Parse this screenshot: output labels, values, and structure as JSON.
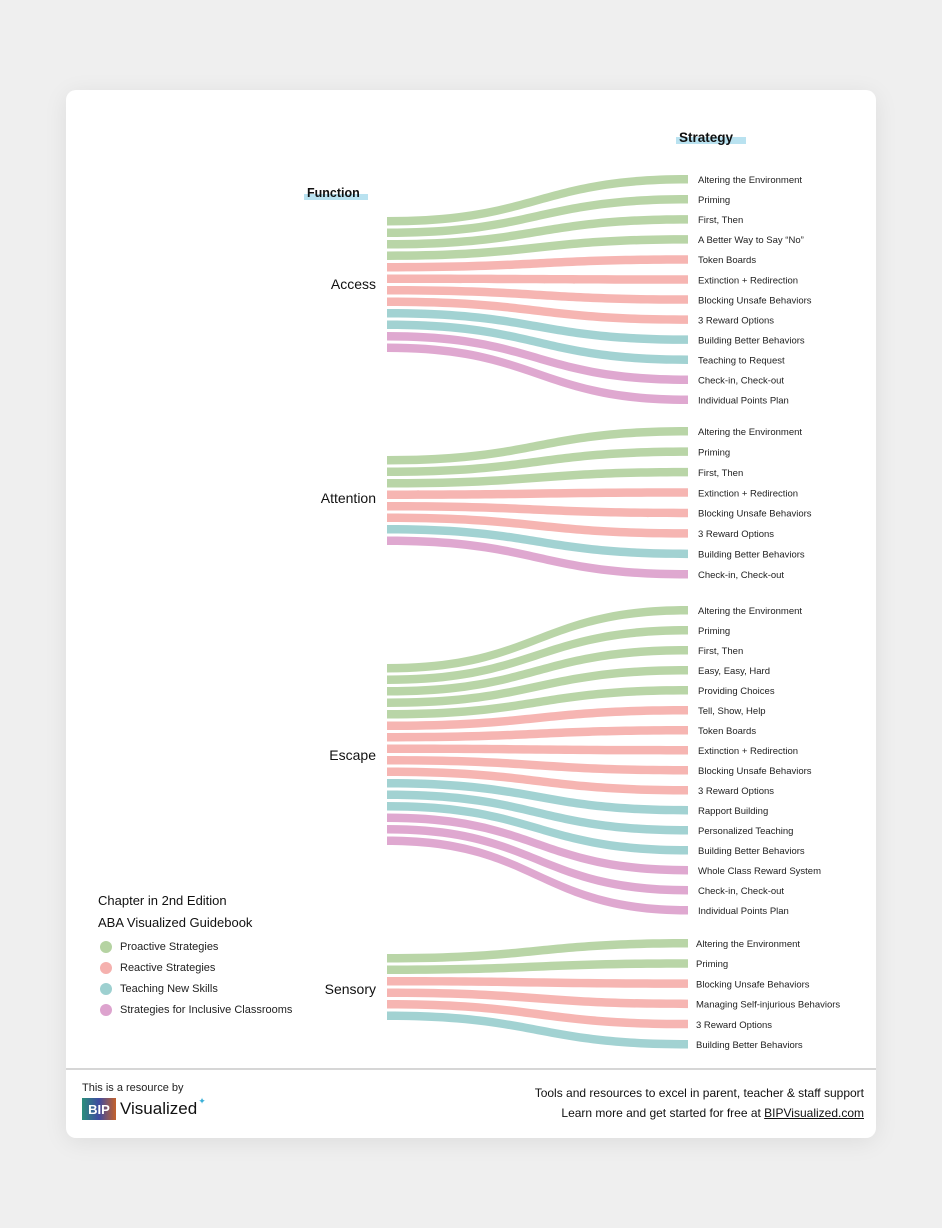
{
  "colors": {
    "proactive": "#b5d3a2",
    "reactive": "#f5b1ae",
    "teaching": "#9dd0d0",
    "inclusive": "#dda3ce",
    "header_highlight": "#b9e2f0"
  },
  "chart_data": {
    "type": "sankey",
    "source_header": "Function",
    "target_header": "Strategy",
    "groups": [
      {
        "function": "Access",
        "strategies": [
          {
            "label": "Altering the Environment",
            "category": "proactive"
          },
          {
            "label": "Priming",
            "category": "proactive"
          },
          {
            "label": "First, Then",
            "category": "proactive"
          },
          {
            "label": "A Better Way to Say “No”",
            "category": "proactive"
          },
          {
            "label": "Token Boards",
            "category": "reactive"
          },
          {
            "label": "Extinction + Redirection",
            "category": "reactive"
          },
          {
            "label": "Blocking Unsafe Behaviors",
            "category": "reactive"
          },
          {
            "label": "3 Reward Options",
            "category": "reactive"
          },
          {
            "label": "Building Better Behaviors",
            "category": "teaching"
          },
          {
            "label": "Teaching to Request",
            "category": "teaching"
          },
          {
            "label": "Check-in, Check-out",
            "category": "inclusive"
          },
          {
            "label": "Individual Points Plan",
            "category": "inclusive"
          }
        ]
      },
      {
        "function": "Attention",
        "strategies": [
          {
            "label": "Altering the Environment",
            "category": "proactive"
          },
          {
            "label": "Priming",
            "category": "proactive"
          },
          {
            "label": "First, Then",
            "category": "proactive"
          },
          {
            "label": "Extinction + Redirection",
            "category": "reactive"
          },
          {
            "label": "Blocking Unsafe Behaviors",
            "category": "reactive"
          },
          {
            "label": "3 Reward Options",
            "category": "reactive"
          },
          {
            "label": "Building Better Behaviors",
            "category": "teaching"
          },
          {
            "label": "Check-in, Check-out",
            "category": "inclusive"
          }
        ]
      },
      {
        "function": "Escape",
        "strategies": [
          {
            "label": "Altering the Environment",
            "category": "proactive"
          },
          {
            "label": "Priming",
            "category": "proactive"
          },
          {
            "label": "First, Then",
            "category": "proactive"
          },
          {
            "label": "Easy, Easy, Hard",
            "category": "proactive"
          },
          {
            "label": "Providing Choices",
            "category": "proactive"
          },
          {
            "label": "Tell, Show, Help",
            "category": "reactive"
          },
          {
            "label": "Token Boards",
            "category": "reactive"
          },
          {
            "label": "Extinction + Redirection",
            "category": "reactive"
          },
          {
            "label": "Blocking Unsafe Behaviors",
            "category": "reactive"
          },
          {
            "label": "3 Reward Options",
            "category": "reactive"
          },
          {
            "label": "Rapport Building",
            "category": "teaching"
          },
          {
            "label": "Personalized Teaching",
            "category": "teaching"
          },
          {
            "label": "Building Better Behaviors",
            "category": "teaching"
          },
          {
            "label": "Whole Class Reward System",
            "category": "inclusive"
          },
          {
            "label": "Check-in, Check-out",
            "category": "inclusive"
          },
          {
            "label": "Individual Points Plan",
            "category": "inclusive"
          }
        ]
      },
      {
        "function": "Sensory",
        "strategies": [
          {
            "label": "Altering the Environment",
            "category": "proactive"
          },
          {
            "label": "Priming",
            "category": "proactive"
          },
          {
            "label": "Blocking Unsafe Behaviors",
            "category": "reactive"
          },
          {
            "label": "Managing Self-injurious Behaviors",
            "category": "reactive"
          },
          {
            "label": "3 Reward Options",
            "category": "reactive"
          },
          {
            "label": "Building Better Behaviors",
            "category": "teaching"
          }
        ]
      }
    ]
  },
  "legend": {
    "title_line1": "Chapter in 2nd Edition",
    "title_line2": "ABA Visualized Guidebook",
    "items": [
      {
        "label": "Proactive Strategies",
        "category": "proactive"
      },
      {
        "label": "Reactive Strategies",
        "category": "reactive"
      },
      {
        "label": "Teaching New Skills",
        "category": "teaching"
      },
      {
        "label": "Strategies for Inclusive Classrooms",
        "category": "inclusive"
      }
    ]
  },
  "footer": {
    "resource_text": "This is a resource by",
    "logo_mark": "BIP",
    "logo_word": "Visualized",
    "tagline": "Tools and resources to excel in parent, teacher & staff support",
    "cta_prefix": "Learn more and get started for free at ",
    "cta_link": "BIPVisualized.com"
  }
}
